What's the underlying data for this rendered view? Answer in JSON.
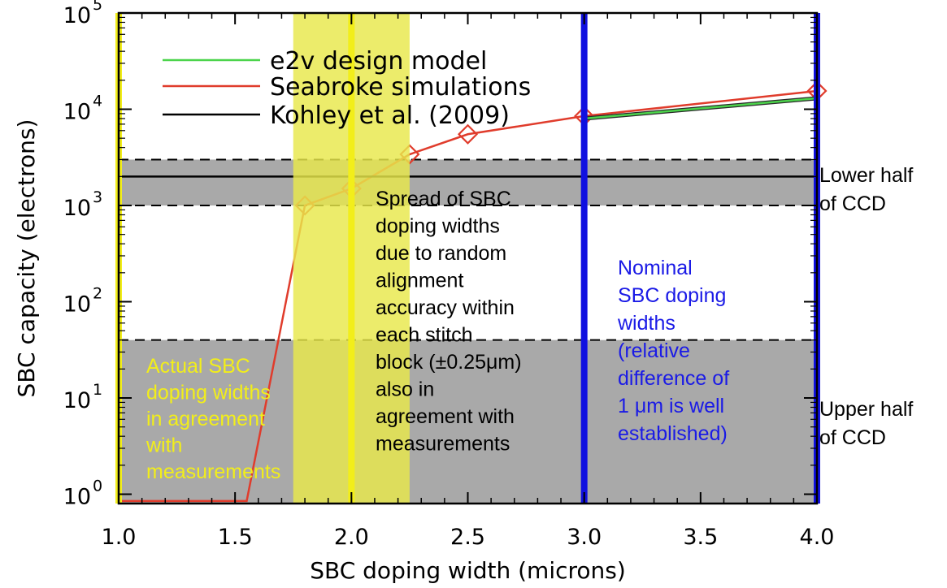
{
  "chart_data": {
    "type": "line",
    "xlabel": "SBC doping width (microns)",
    "ylabel": "SBC capacity (electrons)",
    "xlim": [
      1.0,
      4.0
    ],
    "ylim": [
      1,
      100000
    ],
    "yscale": "log",
    "x_ticks": [
      "1.0",
      "1.5",
      "2.0",
      "2.5",
      "3.0",
      "3.5",
      "4.0"
    ],
    "x_tick_values": [
      1.0,
      1.5,
      2.0,
      2.5,
      3.0,
      3.5,
      4.0
    ],
    "y_ticks": [
      {
        "value": 1,
        "base": "10",
        "exp": "0"
      },
      {
        "value": 10,
        "base": "10",
        "exp": "1"
      },
      {
        "value": 100,
        "base": "10",
        "exp": "2"
      },
      {
        "value": 1000,
        "base": "10",
        "exp": "3"
      },
      {
        "value": 10000,
        "base": "10",
        "exp": "4"
      },
      {
        "value": 100000,
        "base": "10",
        "exp": "5"
      }
    ],
    "legend_position": "top-left",
    "series": [
      {
        "name": "e2v design model",
        "color": "#4cd44c",
        "points": [
          [
            3.0,
            8000
          ],
          [
            4.0,
            13000
          ]
        ]
      },
      {
        "name": "Seabroke simulations",
        "color": "#e03c2c",
        "markers": "diamond",
        "points": [
          [
            1.0,
            0.85
          ],
          [
            1.55,
            0.85
          ],
          [
            1.8,
            1000
          ],
          [
            2.0,
            1500
          ],
          [
            2.25,
            3400
          ],
          [
            2.5,
            5500
          ],
          [
            3.0,
            8500
          ],
          [
            4.0,
            15500
          ]
        ]
      },
      {
        "name": "Kohley et al. (2009)",
        "color": "#000000",
        "points": [
          [
            1.0,
            2000
          ],
          [
            4.0,
            2000
          ]
        ]
      }
    ],
    "bands": [
      {
        "y_from": 1000,
        "y_to": 3000,
        "color": "#a9a9a9"
      },
      {
        "y_from": 0.8,
        "y_to": 40,
        "color": "#a9a9a9"
      }
    ],
    "dashed_lines_y": [
      3000,
      1000,
      40
    ],
    "vertical_lines": [
      {
        "x": 1.0,
        "color": "#f2ee1a"
      },
      {
        "x": 2.0,
        "color": "#f2ee1a"
      },
      {
        "x": 3.0,
        "color": "#1010e0"
      },
      {
        "x": 4.0,
        "color": "#1010e0"
      }
    ],
    "shaded_x_region": {
      "x_from": 1.75,
      "x_to": 2.25,
      "color": "#e8e84a",
      "opacity": 0.82
    },
    "annotations": {
      "actual_sbc": [
        "Actual SBC",
        "doping widths",
        "in agreement",
        "with",
        "measurements"
      ],
      "spread": [
        "Spread of SBC",
        "doping widths",
        "due to random",
        "alignment",
        "accuracy within",
        "each stitch",
        "block (±0.25μm)",
        "also in",
        "agreement with",
        "measurements"
      ],
      "nominal": [
        "Nominal",
        "SBC doping",
        "widths",
        "(relative",
        "difference of",
        "1 μm is well",
        "established)"
      ],
      "lower_half": [
        "Lower half",
        "of CCD"
      ],
      "upper_half": [
        "Upper half",
        "of CCD"
      ]
    },
    "annotation_colors": {
      "actual_sbc": "#f2ee1a",
      "spread": "#000000",
      "nominal": "#1a1ae6"
    }
  }
}
